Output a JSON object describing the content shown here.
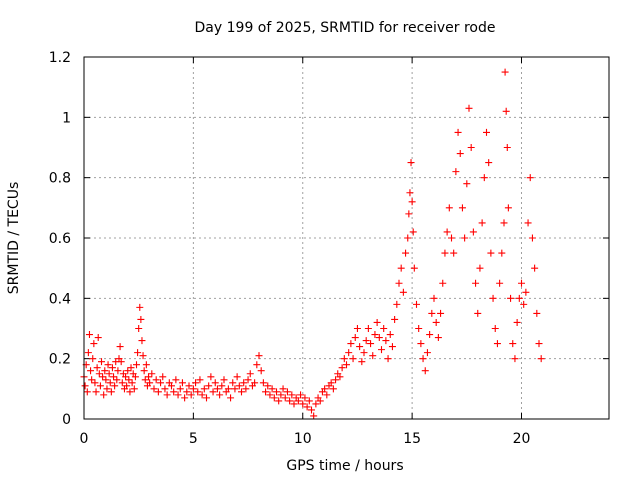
{
  "chart_data": {
    "type": "scatter",
    "title": "Day 199 of 2025, SRMTID for receiver rode",
    "xlabel": "GPS time / hours",
    "ylabel": "SRMTID / TECUs",
    "xlim": [
      0,
      24
    ],
    "ylim": [
      0,
      1.2
    ],
    "x_ticks": [
      0,
      5,
      10,
      15,
      20
    ],
    "x_tick_labels": [
      "0",
      "5",
      "10",
      "15",
      "20"
    ],
    "y_ticks": [
      0,
      0.2,
      0.4,
      0.6,
      0.8,
      1.0,
      1.2
    ],
    "y_tick_labels": [
      "0",
      "0.2",
      "0.4",
      "0.6",
      "0.8",
      "1",
      "1.2"
    ],
    "grid": true,
    "marker": "+",
    "color": "#ff0000",
    "series": [
      {
        "name": "SRMTID",
        "points": [
          [
            0.0,
            0.14
          ],
          [
            0.05,
            0.11
          ],
          [
            0.1,
            0.18
          ],
          [
            0.15,
            0.09
          ],
          [
            0.2,
            0.22
          ],
          [
            0.25,
            0.28
          ],
          [
            0.3,
            0.16
          ],
          [
            0.35,
            0.13
          ],
          [
            0.4,
            0.2
          ],
          [
            0.45,
            0.25
          ],
          [
            0.5,
            0.12
          ],
          [
            0.55,
            0.09
          ],
          [
            0.6,
            0.17
          ],
          [
            0.65,
            0.27
          ],
          [
            0.7,
            0.15
          ],
          [
            0.75,
            0.11
          ],
          [
            0.8,
            0.19
          ],
          [
            0.85,
            0.14
          ],
          [
            0.9,
            0.08
          ],
          [
            0.95,
            0.16
          ],
          [
            1.0,
            0.13
          ],
          [
            1.05,
            0.1
          ],
          [
            1.1,
            0.18
          ],
          [
            1.15,
            0.15
          ],
          [
            1.2,
            0.12
          ],
          [
            1.25,
            0.09
          ],
          [
            1.3,
            0.17
          ],
          [
            1.35,
            0.14
          ],
          [
            1.4,
            0.11
          ],
          [
            1.45,
            0.19
          ],
          [
            1.5,
            0.13
          ],
          [
            1.55,
            0.16
          ],
          [
            1.6,
            0.2
          ],
          [
            1.65,
            0.24
          ],
          [
            1.7,
            0.19
          ],
          [
            1.75,
            0.12
          ],
          [
            1.8,
            0.15
          ],
          [
            1.85,
            0.1
          ],
          [
            1.9,
            0.14
          ],
          [
            1.95,
            0.11
          ],
          [
            2.0,
            0.16
          ],
          [
            2.05,
            0.13
          ],
          [
            2.1,
            0.09
          ],
          [
            2.15,
            0.17
          ],
          [
            2.2,
            0.12
          ],
          [
            2.25,
            0.15
          ],
          [
            2.3,
            0.1
          ],
          [
            2.35,
            0.14
          ],
          [
            2.4,
            0.18
          ],
          [
            2.45,
            0.22
          ],
          [
            2.5,
            0.3
          ],
          [
            2.55,
            0.37
          ],
          [
            2.6,
            0.33
          ],
          [
            2.65,
            0.26
          ],
          [
            2.7,
            0.21
          ],
          [
            2.75,
            0.16
          ],
          [
            2.8,
            0.13
          ],
          [
            2.85,
            0.18
          ],
          [
            2.9,
            0.11
          ],
          [
            2.95,
            0.14
          ],
          [
            3.0,
            0.12
          ],
          [
            3.1,
            0.15
          ],
          [
            3.2,
            0.1
          ],
          [
            3.3,
            0.13
          ],
          [
            3.4,
            0.09
          ],
          [
            3.5,
            0.12
          ],
          [
            3.6,
            0.14
          ],
          [
            3.7,
            0.1
          ],
          [
            3.8,
            0.08
          ],
          [
            3.9,
            0.12
          ],
          [
            4.0,
            0.11
          ],
          [
            4.1,
            0.09
          ],
          [
            4.2,
            0.13
          ],
          [
            4.3,
            0.08
          ],
          [
            4.4,
            0.1
          ],
          [
            4.5,
            0.12
          ],
          [
            4.6,
            0.07
          ],
          [
            4.7,
            0.09
          ],
          [
            4.8,
            0.11
          ],
          [
            4.9,
            0.08
          ],
          [
            5.0,
            0.1
          ],
          [
            5.1,
            0.12
          ],
          [
            5.2,
            0.09
          ],
          [
            5.3,
            0.13
          ],
          [
            5.4,
            0.08
          ],
          [
            5.5,
            0.1
          ],
          [
            5.6,
            0.07
          ],
          [
            5.7,
            0.11
          ],
          [
            5.8,
            0.14
          ],
          [
            5.9,
            0.09
          ],
          [
            6.0,
            0.12
          ],
          [
            6.1,
            0.1
          ],
          [
            6.2,
            0.08
          ],
          [
            6.3,
            0.11
          ],
          [
            6.4,
            0.13
          ],
          [
            6.5,
            0.09
          ],
          [
            6.6,
            0.1
          ],
          [
            6.7,
            0.07
          ],
          [
            6.8,
            0.12
          ],
          [
            6.9,
            0.1
          ],
          [
            7.0,
            0.14
          ],
          [
            7.1,
            0.11
          ],
          [
            7.2,
            0.09
          ],
          [
            7.3,
            0.12
          ],
          [
            7.4,
            0.1
          ],
          [
            7.5,
            0.13
          ],
          [
            7.6,
            0.15
          ],
          [
            7.7,
            0.11
          ],
          [
            7.8,
            0.12
          ],
          [
            7.9,
            0.18
          ],
          [
            8.0,
            0.21
          ],
          [
            8.1,
            0.16
          ],
          [
            8.2,
            0.12
          ],
          [
            8.3,
            0.09
          ],
          [
            8.4,
            0.11
          ],
          [
            8.5,
            0.08
          ],
          [
            8.6,
            0.1
          ],
          [
            8.7,
            0.07
          ],
          [
            8.8,
            0.09
          ],
          [
            8.9,
            0.06
          ],
          [
            9.0,
            0.08
          ],
          [
            9.1,
            0.1
          ],
          [
            9.2,
            0.07
          ],
          [
            9.3,
            0.09
          ],
          [
            9.4,
            0.06
          ],
          [
            9.5,
            0.08
          ],
          [
            9.6,
            0.05
          ],
          [
            9.7,
            0.07
          ],
          [
            9.8,
            0.06
          ],
          [
            9.9,
            0.08
          ],
          [
            10.0,
            0.05
          ],
          [
            10.1,
            0.07
          ],
          [
            10.2,
            0.04
          ],
          [
            10.3,
            0.06
          ],
          [
            10.4,
            0.03
          ],
          [
            10.5,
            0.01
          ],
          [
            10.6,
            0.05
          ],
          [
            10.7,
            0.07
          ],
          [
            10.8,
            0.06
          ],
          [
            10.9,
            0.09
          ],
          [
            11.0,
            0.1
          ],
          [
            11.1,
            0.08
          ],
          [
            11.2,
            0.11
          ],
          [
            11.3,
            0.12
          ],
          [
            11.4,
            0.1
          ],
          [
            11.5,
            0.13
          ],
          [
            11.6,
            0.15
          ],
          [
            11.7,
            0.14
          ],
          [
            11.8,
            0.17
          ],
          [
            11.9,
            0.2
          ],
          [
            12.0,
            0.18
          ],
          [
            12.1,
            0.22
          ],
          [
            12.2,
            0.25
          ],
          [
            12.3,
            0.2
          ],
          [
            12.4,
            0.27
          ],
          [
            12.5,
            0.3
          ],
          [
            12.6,
            0.24
          ],
          [
            12.7,
            0.19
          ],
          [
            12.8,
            0.22
          ],
          [
            12.9,
            0.26
          ],
          [
            13.0,
            0.3
          ],
          [
            13.1,
            0.25
          ],
          [
            13.2,
            0.21
          ],
          [
            13.3,
            0.28
          ],
          [
            13.4,
            0.32
          ],
          [
            13.5,
            0.27
          ],
          [
            13.6,
            0.23
          ],
          [
            13.7,
            0.3
          ],
          [
            13.8,
            0.26
          ],
          [
            13.9,
            0.2
          ],
          [
            14.0,
            0.28
          ],
          [
            14.1,
            0.24
          ],
          [
            14.2,
            0.33
          ],
          [
            14.3,
            0.38
          ],
          [
            14.4,
            0.45
          ],
          [
            14.5,
            0.5
          ],
          [
            14.6,
            0.42
          ],
          [
            14.7,
            0.55
          ],
          [
            14.8,
            0.6
          ],
          [
            14.85,
            0.68
          ],
          [
            14.9,
            0.75
          ],
          [
            14.95,
            0.85
          ],
          [
            15.0,
            0.72
          ],
          [
            15.05,
            0.62
          ],
          [
            15.1,
            0.5
          ],
          [
            15.2,
            0.38
          ],
          [
            15.3,
            0.3
          ],
          [
            15.4,
            0.25
          ],
          [
            15.5,
            0.2
          ],
          [
            15.6,
            0.16
          ],
          [
            15.7,
            0.22
          ],
          [
            15.8,
            0.28
          ],
          [
            15.9,
            0.35
          ],
          [
            16.0,
            0.4
          ],
          [
            16.1,
            0.32
          ],
          [
            16.2,
            0.27
          ],
          [
            16.3,
            0.35
          ],
          [
            16.4,
            0.45
          ],
          [
            16.5,
            0.55
          ],
          [
            16.6,
            0.62
          ],
          [
            16.7,
            0.7
          ],
          [
            16.8,
            0.6
          ],
          [
            16.9,
            0.55
          ],
          [
            17.0,
            0.82
          ],
          [
            17.1,
            0.95
          ],
          [
            17.2,
            0.88
          ],
          [
            17.3,
            0.7
          ],
          [
            17.4,
            0.6
          ],
          [
            17.5,
            0.78
          ],
          [
            17.6,
            1.03
          ],
          [
            17.7,
            0.9
          ],
          [
            17.8,
            0.62
          ],
          [
            17.9,
            0.45
          ],
          [
            18.0,
            0.35
          ],
          [
            18.1,
            0.5
          ],
          [
            18.2,
            0.65
          ],
          [
            18.3,
            0.8
          ],
          [
            18.4,
            0.95
          ],
          [
            18.5,
            0.85
          ],
          [
            18.6,
            0.55
          ],
          [
            18.7,
            0.4
          ],
          [
            18.8,
            0.3
          ],
          [
            18.9,
            0.25
          ],
          [
            19.0,
            0.45
          ],
          [
            19.1,
            0.55
          ],
          [
            19.2,
            0.65
          ],
          [
            19.25,
            1.15
          ],
          [
            19.3,
            1.02
          ],
          [
            19.35,
            0.9
          ],
          [
            19.4,
            0.7
          ],
          [
            19.5,
            0.4
          ],
          [
            19.6,
            0.25
          ],
          [
            19.7,
            0.2
          ],
          [
            19.8,
            0.32
          ],
          [
            19.9,
            0.4
          ],
          [
            20.0,
            0.45
          ],
          [
            20.1,
            0.38
          ],
          [
            20.2,
            0.42
          ],
          [
            20.3,
            0.65
          ],
          [
            20.4,
            0.8
          ],
          [
            20.5,
            0.6
          ],
          [
            20.6,
            0.5
          ],
          [
            20.7,
            0.35
          ],
          [
            20.8,
            0.25
          ],
          [
            20.9,
            0.2
          ]
        ]
      }
    ]
  }
}
